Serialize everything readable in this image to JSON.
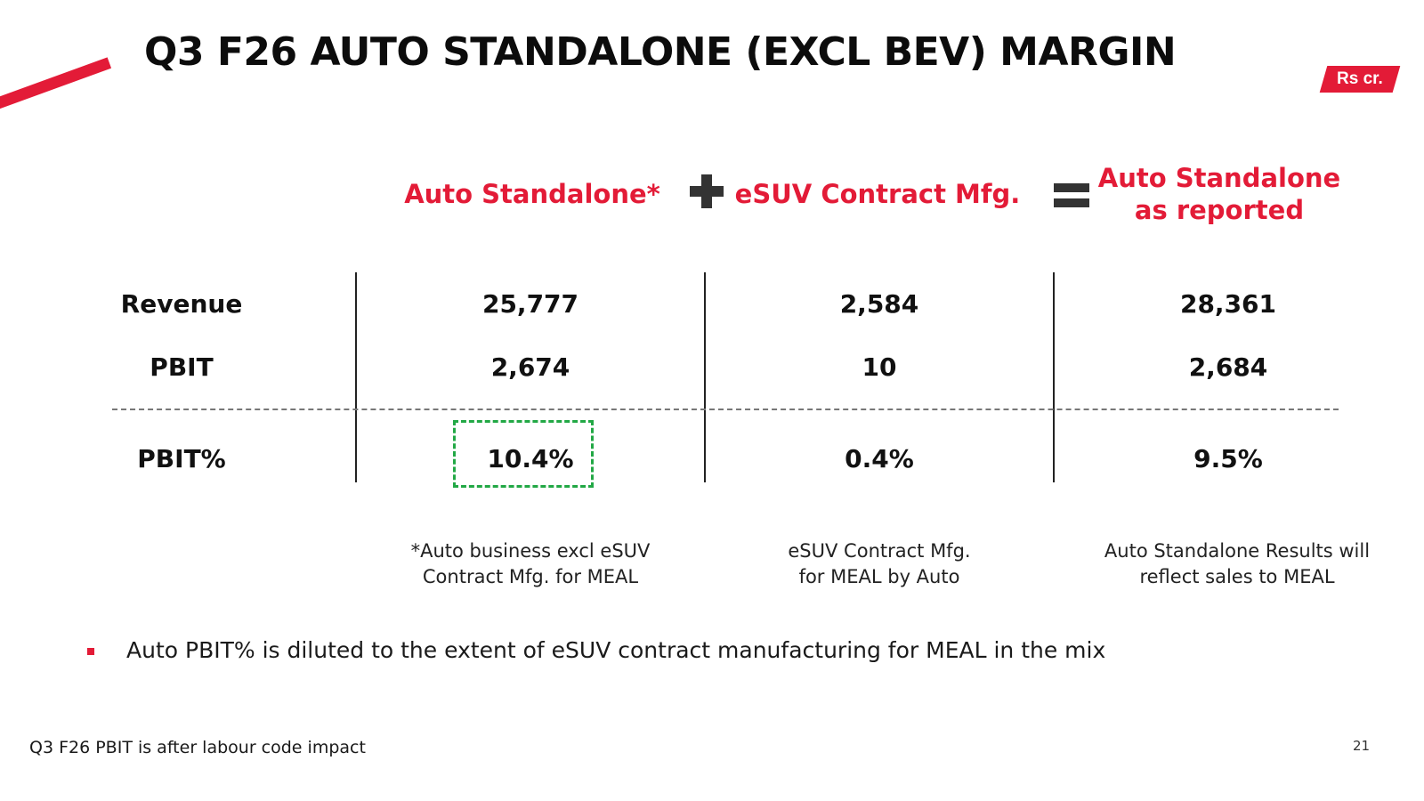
{
  "title": "Q3 F26 AUTO STANDALONE (EXCL BEV) MARGIN",
  "unit_badge": "Rs cr.",
  "colors": {
    "accent": "#e31b37",
    "highlight": "#22a845",
    "operator": "#333333"
  },
  "columns": [
    {
      "heading_lines": [
        "Auto Standalone*"
      ],
      "footnote_lines": [
        "*Auto business excl eSUV",
        "Contract Mfg. for MEAL"
      ]
    },
    {
      "heading_lines": [
        "eSUV Contract Mfg."
      ],
      "footnote_lines": [
        "eSUV Contract Mfg.",
        "for MEAL by Auto"
      ]
    },
    {
      "heading_lines": [
        "Auto Standalone",
        "as reported"
      ],
      "footnote_lines": [
        "Auto Standalone Results will",
        "reflect sales to MEAL"
      ]
    }
  ],
  "operators": {
    "plus": "plus-icon",
    "equals": "equals-icon"
  },
  "rows": [
    {
      "label": "Revenue",
      "values": [
        "25,777",
        "2,584",
        "28,361"
      ]
    },
    {
      "label": "PBIT",
      "values": [
        "2,674",
        "10",
        "2,684"
      ]
    },
    {
      "label": "PBIT%",
      "values": [
        "10.4%",
        "0.4%",
        "9.5%"
      ]
    }
  ],
  "bullet": "Auto PBIT% is diluted to the extent of eSUV contract manufacturing for MEAL in the mix",
  "footer_note": "Q3 F26 PBIT is after labour code impact",
  "page_number": "21"
}
